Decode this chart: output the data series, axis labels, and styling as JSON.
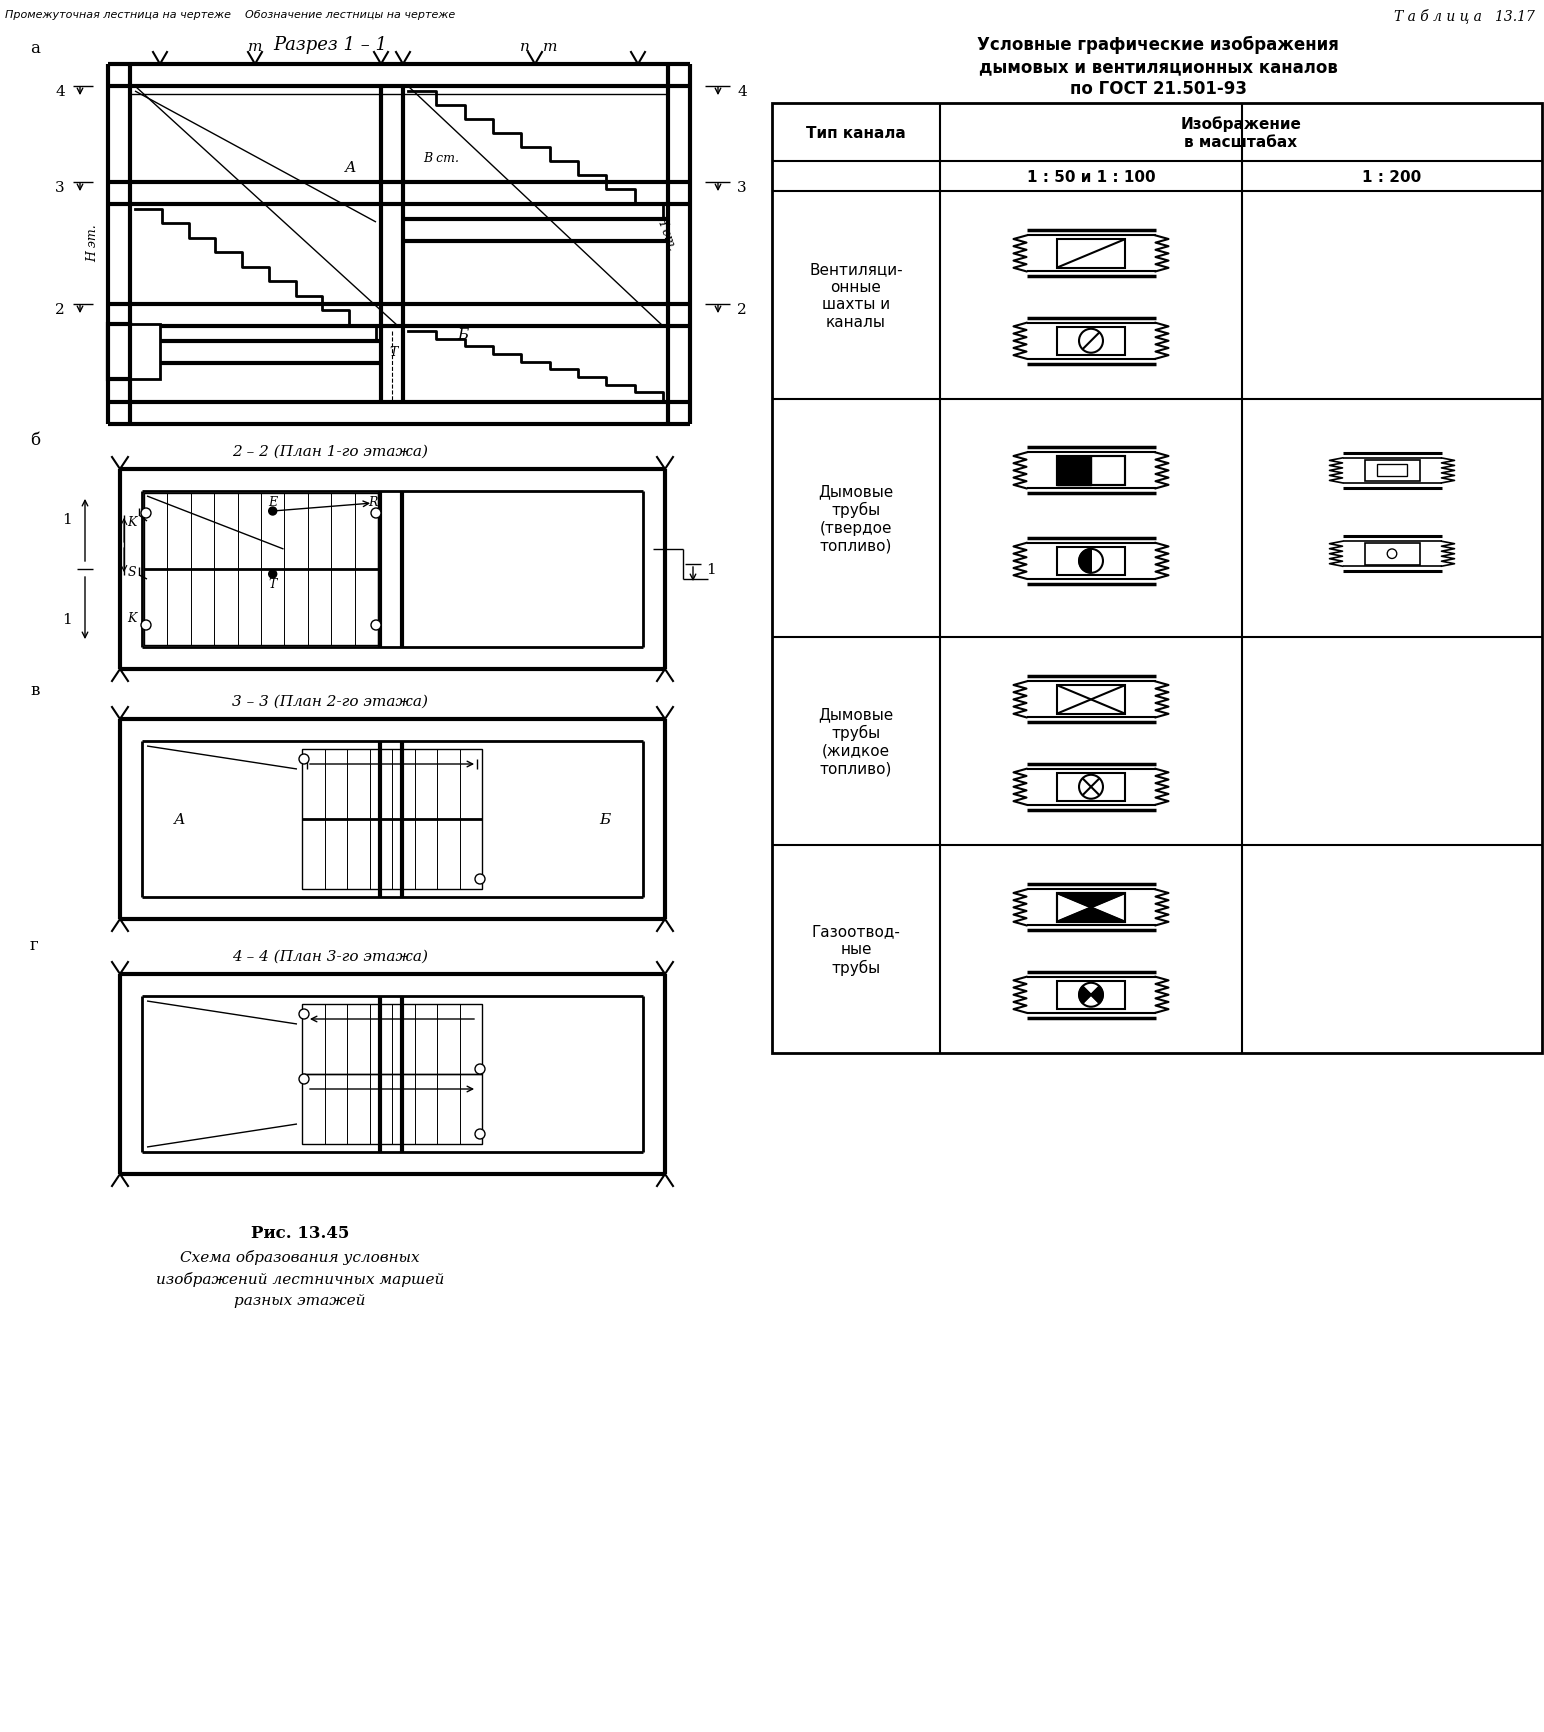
{
  "tablitsa": "Т а б л и ц а   13.17",
  "table_title1": "Условные графические изображения",
  "table_title2": "дымовых и вентиляционных каналов",
  "table_title3": "по ГОСТ 21.501-93",
  "col1_header": "Тип канала",
  "col2_header": "Изображение\nв масштабах",
  "col3_header": "1 : 50 и 1 : 100",
  "col4_header": "1 : 200",
  "row_labels": [
    "Вентиляци-\nонные\nшахты и\nканалы",
    "Дымовые\nтрубы\n(твердое\nтопливо)",
    "Дымовые\nтрубы\n(жидкое\nтопливо)",
    "Газоотвод-\nные\nтрубы"
  ],
  "section_a_label": "Разрез 1 – 1",
  "plan_b_label": "2 – 2 (План 1-го этажа)",
  "plan_c_label": "3 – 3 (План 2-го этажа)",
  "plan_d_label": "4 – 4 (План 3-го этажа)",
  "fig_num": "Рис. 13.45",
  "fig_caption_line1": "Схема образования условных",
  "fig_caption_line2": "изображений лестничных маршей",
  "fig_caption_line3": "разных этажей",
  "label_a": "а",
  "label_b": "б",
  "label_c": "в",
  "label_d": "г",
  "top_heading": "Промежуточная лестница на чертеже    Обозначение лестницы на чертеже",
  "bgc": "#ffffff"
}
